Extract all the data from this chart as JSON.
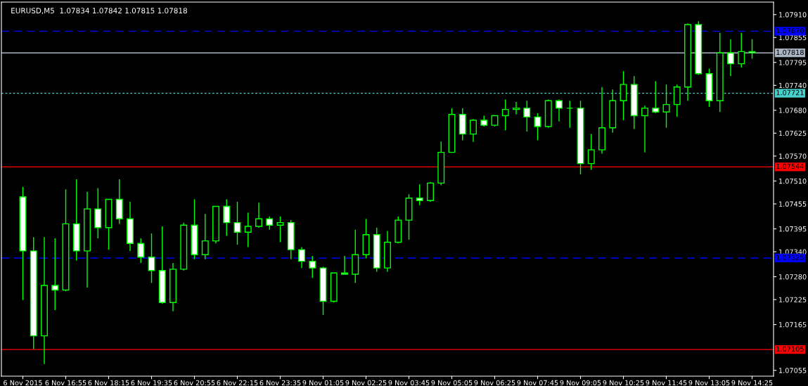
{
  "chart_data": {
    "type": "candlestick",
    "title": "EURUSD,M5  1.07834 1.07842 1.07815 1.07818",
    "categories": [
      "6 Nov 2015",
      null,
      null,
      null,
      "6 Nov 16:55",
      null,
      null,
      null,
      "6 Nov 18:15",
      null,
      null,
      null,
      "6 Nov 19:35",
      null,
      null,
      null,
      "6 Nov 20:55",
      null,
      null,
      null,
      "6 Nov 22:15",
      null,
      null,
      null,
      "6 Nov 23:35",
      null,
      null,
      null,
      "9 Nov 01:05",
      null,
      null,
      null,
      "9 Nov 02:25",
      null,
      null,
      null,
      "9 Nov 03:45",
      null,
      null,
      null,
      "9 Nov 05:05",
      null,
      null,
      null,
      "9 Nov 06:25",
      null,
      null,
      null,
      "9 Nov 07:45",
      null,
      null,
      null,
      "9 Nov 09:05",
      null,
      null,
      null,
      "9 Nov 10:25",
      null,
      null,
      null,
      "9 Nov 11:45",
      null,
      null,
      null,
      "9 Nov 13:05",
      null,
      null,
      null,
      "9 Nov 14:25"
    ],
    "ohlc": [
      [
        1.07472,
        1.07496,
        1.07224,
        1.07342
      ],
      [
        1.07342,
        1.07375,
        1.07106,
        1.07138
      ],
      [
        1.07138,
        1.07375,
        1.0707,
        1.07259
      ],
      [
        1.07259,
        1.07372,
        1.072,
        1.07248
      ],
      [
        1.07248,
        1.0749,
        1.07245,
        1.07407
      ],
      [
        1.07407,
        1.07514,
        1.07319,
        1.07342
      ],
      [
        1.07342,
        1.07484,
        1.07254,
        1.07443
      ],
      [
        1.07443,
        1.07493,
        1.07372,
        1.07398
      ],
      [
        1.07398,
        1.07466,
        1.07345,
        1.07466
      ],
      [
        1.07466,
        1.07514,
        1.07407,
        1.07419
      ],
      [
        1.07419,
        1.0746,
        1.07342,
        1.0736
      ],
      [
        1.0736,
        1.07372,
        1.07313,
        1.07327
      ],
      [
        1.07327,
        1.07384,
        1.07265,
        1.07295
      ],
      [
        1.07295,
        1.07401,
        1.07215,
        1.07218
      ],
      [
        1.07218,
        1.07313,
        1.07197,
        1.07298
      ],
      [
        1.07298,
        1.0741,
        1.07295,
        1.07404
      ],
      [
        1.07404,
        1.07466,
        1.07322,
        1.07333
      ],
      [
        1.07333,
        1.07431,
        1.07322,
        1.07366
      ],
      [
        1.07366,
        1.07449,
        1.0736,
        1.07449
      ],
      [
        1.07449,
        1.07466,
        1.07378,
        1.0741
      ],
      [
        1.0741,
        1.0746,
        1.07357,
        1.07387
      ],
      [
        1.07387,
        1.07434,
        1.07351,
        1.07401
      ],
      [
        1.07401,
        1.07458,
        1.07398,
        1.07419
      ],
      [
        1.07419,
        1.07425,
        1.07393,
        1.07404
      ],
      [
        1.07404,
        1.07425,
        1.07363,
        1.0741
      ],
      [
        1.0741,
        1.07416,
        1.07322,
        1.07345
      ],
      [
        1.07345,
        1.07351,
        1.07301,
        1.07317
      ],
      [
        1.07317,
        1.0733,
        1.07277,
        1.07301
      ],
      [
        1.07301,
        1.07304,
        1.07188,
        1.07221
      ],
      [
        1.07221,
        1.07289,
        1.07218,
        1.07289
      ],
      [
        1.07289,
        1.0733,
        1.07286,
        1.07286
      ],
      [
        1.07286,
        1.07393,
        1.07265,
        1.07333
      ],
      [
        1.07333,
        1.07419,
        1.07324,
        1.07381
      ],
      [
        1.07381,
        1.07398,
        1.07292,
        1.07301
      ],
      [
        1.07301,
        1.0739,
        1.07292,
        1.07363
      ],
      [
        1.07363,
        1.07425,
        1.0736,
        1.07416
      ],
      [
        1.07416,
        1.07478,
        1.07369,
        1.07469
      ],
      [
        1.07469,
        1.07502,
        1.07452,
        1.07463
      ],
      [
        1.07463,
        1.07508,
        1.0746,
        1.07505
      ],
      [
        1.07505,
        1.07605,
        1.075,
        1.07579
      ],
      [
        1.07579,
        1.07685,
        1.07579,
        1.0767
      ],
      [
        1.0767,
        1.07685,
        1.07608,
        1.07623
      ],
      [
        1.07623,
        1.07659,
        1.07604,
        1.07656
      ],
      [
        1.07656,
        1.07667,
        1.07641,
        1.07644
      ],
      [
        1.07644,
        1.07667,
        1.07641,
        1.07667
      ],
      [
        1.07667,
        1.07706,
        1.07632,
        1.07682
      ],
      [
        1.07682,
        1.077,
        1.0767,
        1.07685
      ],
      [
        1.07685,
        1.07703,
        1.07629,
        1.07664
      ],
      [
        1.07664,
        1.07673,
        1.07608,
        1.07641
      ],
      [
        1.07641,
        1.07706,
        1.07638,
        1.07703
      ],
      [
        1.07703,
        1.07706,
        1.07653,
        1.07685
      ],
      [
        1.07685,
        1.07703,
        1.07638,
        1.07685
      ],
      [
        1.07685,
        1.07703,
        1.07526,
        1.07552
      ],
      [
        1.07552,
        1.07623,
        1.07537,
        1.07585
      ],
      [
        1.07585,
        1.07736,
        1.07576,
        1.07638
      ],
      [
        1.07638,
        1.0773,
        1.07626,
        1.07703
      ],
      [
        1.07703,
        1.07774,
        1.07656,
        1.07742
      ],
      [
        1.07742,
        1.07762,
        1.07635,
        1.07667
      ],
      [
        1.07667,
        1.07691,
        1.07579,
        1.07685
      ],
      [
        1.07685,
        1.0775,
        1.07673,
        1.07676
      ],
      [
        1.07676,
        1.07742,
        1.07638,
        1.07694
      ],
      [
        1.07694,
        1.07742,
        1.07664,
        1.07736
      ],
      [
        1.07736,
        1.07889,
        1.07703,
        1.07886
      ],
      [
        1.07886,
        1.07894,
        1.07765,
        1.07768
      ],
      [
        1.07768,
        1.0778,
        1.07688,
        1.07703
      ],
      [
        1.07703,
        1.07866,
        1.07676,
        1.07818
      ],
      [
        1.07818,
        1.07851,
        1.07762,
        1.07792
      ],
      [
        1.07792,
        1.07866,
        1.07783,
        1.07821
      ],
      [
        1.07821,
        1.07851,
        1.07804,
        1.07818
      ]
    ],
    "ylim": [
      1.07041,
      1.0794
    ],
    "yticks": [
      1.07055,
      1.07165,
      1.07225,
      {
        "value": 1.0728,
        "label": "1.07280"
      },
      {
        "value": 1.0734,
        "label": "1.07340"
      },
      1.07395,
      1.07455,
      {
        "value": 1.0751,
        "label": "1.07510"
      },
      {
        "value": 1.0757,
        "label": "1.07570"
      },
      1.07625,
      {
        "value": 1.0768,
        "label": "1.07680"
      },
      {
        "value": 1.0774,
        "label": "1.07740"
      },
      1.07795,
      1.07855,
      {
        "value": 1.0791,
        "label": "1.07910"
      }
    ],
    "ref_lines": [
      {
        "axis": "y",
        "value": 1.0787,
        "label": "1.07870",
        "color": "#0000ff",
        "line_style": "dashed"
      },
      {
        "axis": "y",
        "value": 1.07818,
        "label": "1.07818",
        "color": "#a9b4c2",
        "line_style": "solid"
      },
      {
        "axis": "y",
        "value": 1.07721,
        "label": "1.07721",
        "color": "#48d1cc",
        "line_style": "dotted"
      },
      {
        "axis": "y",
        "value": 1.07544,
        "label": "1.07544",
        "color": "#ff0000",
        "line_style": "solid"
      },
      {
        "axis": "y",
        "value": 1.07325,
        "label": "1.07325",
        "color": "#0000ff",
        "line_style": "dashed"
      },
      {
        "axis": "y",
        "value": 1.07105,
        "label": "1.07105",
        "color": "#ff0000",
        "line_style": "solid"
      }
    ],
    "grid": false
  }
}
